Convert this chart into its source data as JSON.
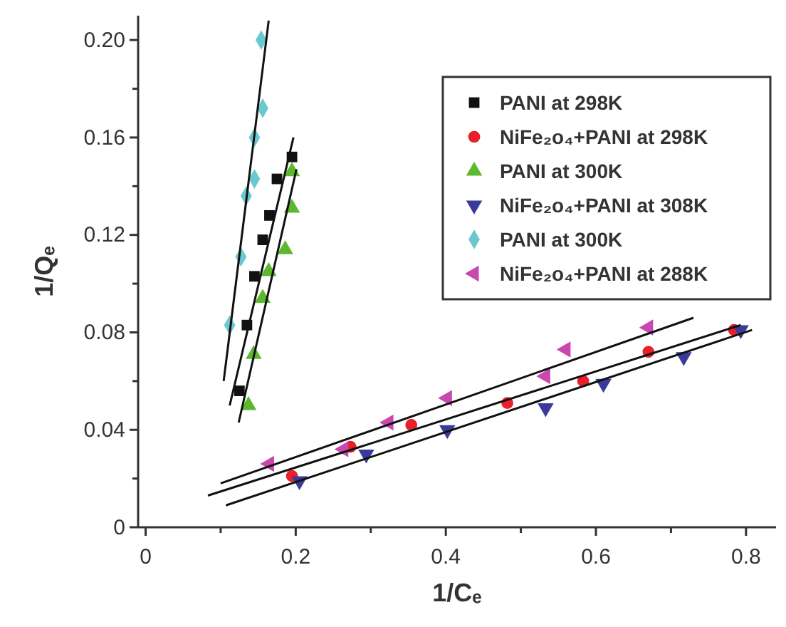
{
  "chart_data": {
    "type": "scatter",
    "xlabel": "1/Cₑ",
    "ylabel": "1/Qₑ",
    "xlim": [
      -0.01,
      0.84
    ],
    "ylim": [
      0,
      0.21
    ],
    "xticks": [
      0,
      {
        "value": 0.1,
        "label": null
      },
      {
        "value": 0.2,
        "label": "0.2"
      },
      {
        "value": 0.3,
        "label": null
      },
      {
        "value": 0.4,
        "label": "0.4"
      },
      {
        "value": 0.5,
        "label": null
      },
      {
        "value": 0.6,
        "label": "0.6"
      },
      {
        "value": 0.7,
        "label": null
      },
      {
        "value": 0.8,
        "label": "0.8"
      }
    ],
    "yticks": [
      0,
      {
        "value": 0.02,
        "label": null
      },
      0.04,
      {
        "value": 0.06,
        "label": null
      },
      0.08,
      {
        "value": 0.1,
        "label": null
      },
      0.12,
      {
        "value": 0.14,
        "label": null
      },
      0.16,
      {
        "value": 0.18,
        "label": null
      },
      {
        "value": 0.2,
        "label": "0.20"
      }
    ],
    "grid": false,
    "legend": "top right",
    "series": [
      {
        "name": "PANI at 298K",
        "color": "#111111",
        "marker": "square",
        "x": [
          0.125,
          0.135,
          0.145,
          0.156,
          0.165,
          0.175,
          0.195
        ],
        "values": [
          0.056,
          0.083,
          0.103,
          0.118,
          0.128,
          0.143,
          0.152
        ]
      },
      {
        "name": "NiFe₂o₄+PANI at 298K",
        "color": "#e8202a",
        "marker": "circle",
        "x": [
          0.195,
          0.273,
          0.354,
          0.482,
          0.583,
          0.67,
          0.784
        ],
        "values": [
          0.021,
          0.033,
          0.042,
          0.051,
          0.06,
          0.072,
          0.081
        ]
      },
      {
        "name": "PANI at 300K",
        "color": "#5cb82e",
        "marker": "triangle",
        "x": [
          0.137,
          0.144,
          0.156,
          0.164,
          0.186,
          0.195,
          0.195
        ],
        "values": [
          0.05,
          0.071,
          0.094,
          0.105,
          0.114,
          0.131,
          0.146
        ]
      },
      {
        "name": "NiFe₂o₄+PANI at 308K",
        "color": "#3a3a9a",
        "marker": "triangle-down",
        "x": [
          0.205,
          0.294,
          0.402,
          0.533,
          0.61,
          0.717,
          0.793
        ],
        "values": [
          0.019,
          0.03,
          0.04,
          0.049,
          0.059,
          0.07,
          0.081
        ]
      },
      {
        "name": "PANI at 300K",
        "color": "#6cc8d0",
        "marker": "diamond",
        "x": [
          0.112,
          0.127,
          0.134,
          0.145,
          0.145,
          0.156,
          0.154
        ],
        "values": [
          0.083,
          0.111,
          0.136,
          0.143,
          0.16,
          0.172,
          0.2
        ]
      },
      {
        "name": "NiFe₂o₄+PANI at 288K",
        "color": "#c848b0",
        "marker": "triangle-left",
        "x": [
          0.165,
          0.264,
          0.324,
          0.402,
          0.533,
          0.56,
          0.67
        ],
        "values": [
          0.026,
          0.032,
          0.043,
          0.053,
          0.062,
          0.073,
          0.082
        ]
      },
      {
        "type": "line",
        "color": "#111111",
        "x": [
          0.112,
          0.197
        ],
        "values": [
          0.05,
          0.16
        ]
      },
      {
        "type": "line",
        "color": "#111111",
        "x": [
          0.124,
          0.201
        ],
        "values": [
          0.043,
          0.147
        ]
      },
      {
        "type": "line",
        "color": "#111111",
        "x": [
          0.104,
          0.164
        ],
        "values": [
          0.06,
          0.208
        ]
      },
      {
        "type": "line",
        "color": "#111111",
        "x": [
          0.1,
          0.73
        ],
        "values": [
          0.018,
          0.086
        ]
      },
      {
        "type": "line",
        "color": "#111111",
        "x": [
          0.083,
          0.793
        ],
        "values": [
          0.013,
          0.083
        ]
      },
      {
        "type": "line",
        "color": "#111111",
        "x": [
          0.107,
          0.808
        ],
        "values": [
          0.009,
          0.081
        ]
      }
    ]
  }
}
